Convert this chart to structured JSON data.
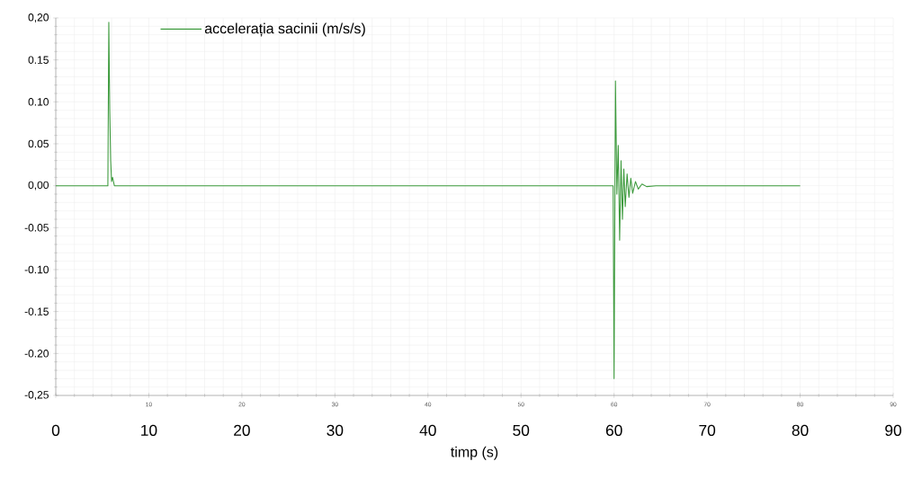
{
  "chart_data": {
    "type": "line",
    "xlabel": "timp (s)",
    "x": [
      0,
      5.6,
      5.7,
      5.8,
      5.9,
      6.0,
      6.1,
      6.3,
      59.9,
      60.0,
      60.15,
      60.3,
      60.45,
      60.6,
      60.75,
      60.9,
      61.05,
      61.2,
      61.4,
      61.6,
      61.8,
      62.0,
      62.3,
      62.6,
      63.0,
      63.5,
      64.5,
      80
    ],
    "series": [
      {
        "name": "accelerația sacinii (m/s/s)",
        "color": "#3c9a3c",
        "values": [
          0,
          0,
          0.195,
          0.09,
          0.03,
          0.005,
          0.01,
          0,
          0,
          -0.23,
          0.125,
          -0.01,
          0.048,
          -0.065,
          0.03,
          -0.04,
          0.02,
          -0.025,
          0.014,
          -0.014,
          0.009,
          -0.009,
          0.005,
          -0.004,
          0.002,
          -0.001,
          0,
          0
        ]
      }
    ],
    "xlim": [
      0,
      90
    ],
    "xticks": [
      {
        "value": 0,
        "label": null
      },
      10,
      20,
      30,
      40,
      50,
      60,
      70,
      80,
      90
    ],
    "x2lim": [
      0,
      90
    ],
    "x2ticks": [
      0,
      10,
      20,
      30,
      40,
      50,
      60,
      70,
      80,
      90
    ],
    "ylim": [
      -0.25,
      0.2
    ],
    "yticks": [
      {
        "value": -0.25,
        "label": "-0,25"
      },
      {
        "value": -0.2,
        "label": "-0.20"
      },
      {
        "value": -0.15,
        "label": "-0.15"
      },
      {
        "value": -0.1,
        "label": "-0.10"
      },
      {
        "value": -0.05,
        "label": "-0.05"
      },
      {
        "value": 0,
        "label": "0,00"
      },
      {
        "value": 0.05,
        "label": "0.05"
      },
      {
        "value": 0.1,
        "label": "0.10"
      },
      {
        "value": 0.15,
        "label": "0.15"
      },
      {
        "value": 0.2,
        "label": "0,20"
      }
    ],
    "grid": true,
    "legend": "top",
    "marker": "none",
    "line_style": "solid"
  }
}
